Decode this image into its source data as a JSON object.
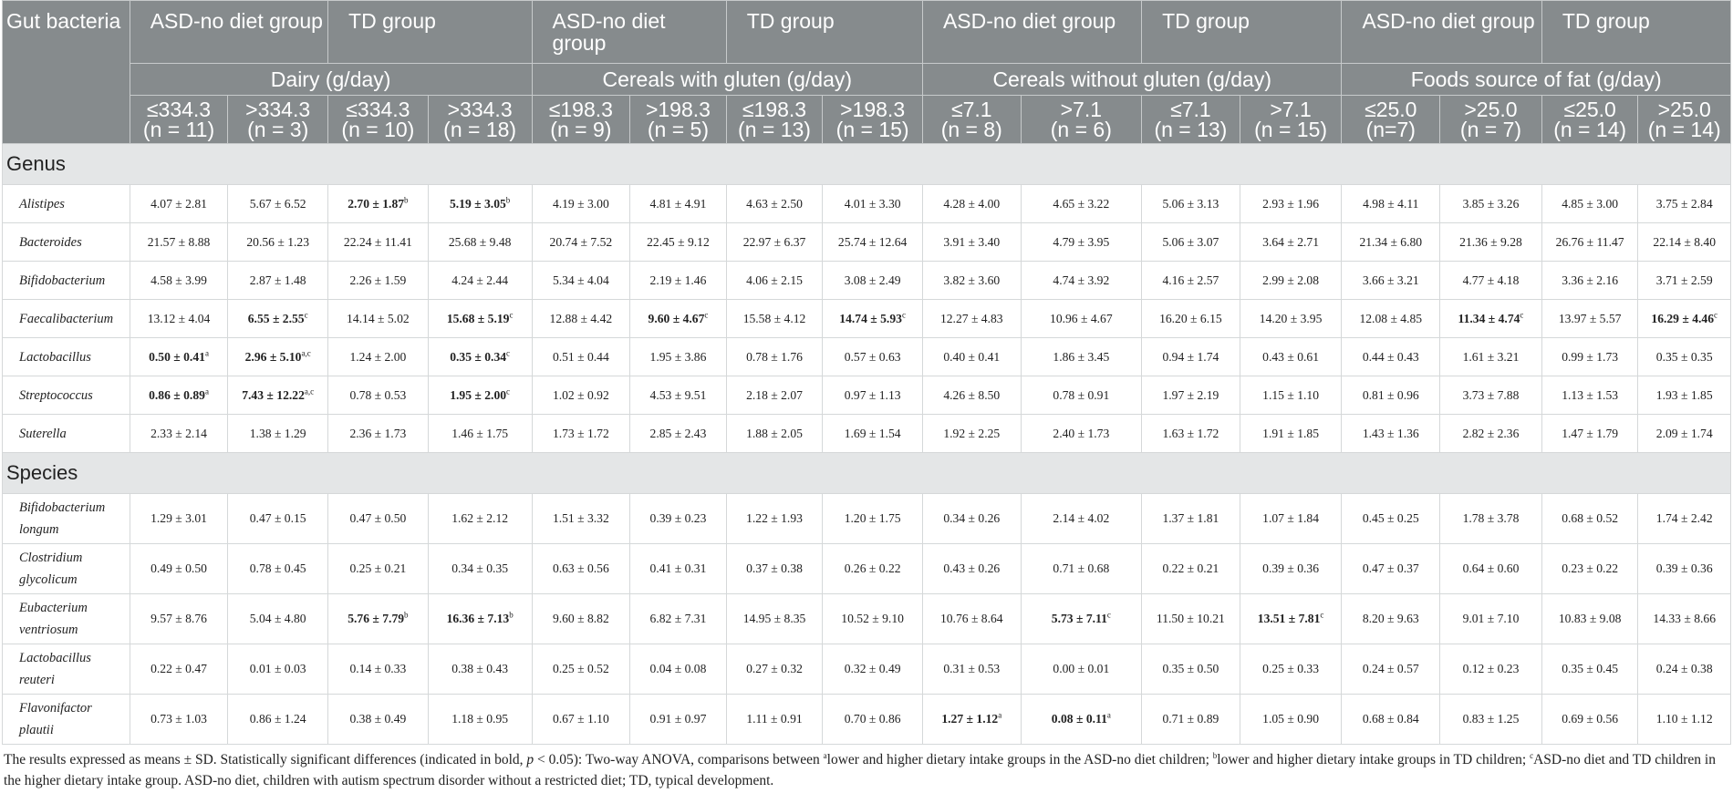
{
  "header": {
    "gut_bacteria": "Gut bacteria",
    "group_labels": [
      "ASD-no diet group",
      "TD group",
      "ASD-no diet group",
      "TD group",
      "ASD-no diet group",
      "TD group",
      "ASD-no diet group",
      "TD group"
    ],
    "food_groups": [
      "Dairy (g/day)",
      "Cereals with gluten (g/day)",
      "Cereals without gluten (g/day)",
      "Foods source of fat (g/day)"
    ],
    "sub_headers": [
      [
        "≤334.3",
        "(n = 11)"
      ],
      [
        ">334.3",
        "(n = 3)"
      ],
      [
        "≤334.3",
        "(n = 10)"
      ],
      [
        ">334.3",
        "(n = 18)"
      ],
      [
        "≤198.3",
        "(n = 9)"
      ],
      [
        ">198.3",
        "(n = 5)"
      ],
      [
        "≤198.3",
        "(n = 13)"
      ],
      [
        ">198.3",
        "(n = 15)"
      ],
      [
        "≤7.1",
        "(n = 8)"
      ],
      [
        ">7.1",
        "(n = 6)"
      ],
      [
        "≤7.1",
        "(n = 13)"
      ],
      [
        ">7.1",
        "(n = 15)"
      ],
      [
        "≤25.0",
        "(n=7)"
      ],
      [
        ">25.0",
        "(n = 7)"
      ],
      [
        "≤25.0",
        "(n = 14)"
      ],
      [
        ">25.0",
        "(n = 14)"
      ]
    ]
  },
  "sections": {
    "genus": {
      "label": "Genus",
      "rows": [
        {
          "name": "Alistipes",
          "values": [
            "4.07 ± 2.81",
            "5.67 ± 6.52",
            "2.70 ± 1.87",
            "5.19 ± 3.05",
            "4.19 ± 3.00",
            "4.81 ± 4.91",
            "4.63 ± 2.50",
            "4.01 ± 3.30",
            "4.28 ± 4.00",
            "4.65 ± 3.22",
            "5.06 ± 3.13",
            "2.93 ± 1.96",
            "4.98 ± 4.11",
            "3.85 ± 3.26",
            "4.85 ± 3.00",
            "3.75 ± 2.84"
          ],
          "sup": [
            "",
            "",
            "b",
            "b",
            "",
            "",
            "",
            "",
            "",
            "",
            "",
            "",
            "",
            "",
            "",
            ""
          ],
          "bold": [
            false,
            false,
            true,
            true,
            false,
            false,
            false,
            false,
            false,
            false,
            false,
            false,
            false,
            false,
            false,
            false
          ]
        },
        {
          "name": "Bacteroides",
          "values": [
            "21.57 ± 8.88",
            "20.56 ± 1.23",
            "22.24 ± 11.41",
            "25.68 ± 9.48",
            "20.74 ± 7.52",
            "22.45 ± 9.12",
            "22.97 ± 6.37",
            "25.74 ± 12.64",
            "3.91 ± 3.40",
            "4.79 ± 3.95",
            "5.06 ± 3.07",
            "3.64 ± 2.71",
            "21.34 ± 6.80",
            "21.36 ± 9.28",
            "26.76 ± 11.47",
            "22.14 ± 8.40"
          ],
          "sup": [
            "",
            "",
            "",
            "",
            "",
            "",
            "",
            "",
            "",
            "",
            "",
            "",
            "",
            "",
            "",
            ""
          ],
          "bold": [
            false,
            false,
            false,
            false,
            false,
            false,
            false,
            false,
            false,
            false,
            false,
            false,
            false,
            false,
            false,
            false
          ]
        },
        {
          "name": "Bifidobacterium",
          "values": [
            "4.58 ± 3.99",
            "2.87 ± 1.48",
            "2.26 ± 1.59",
            "4.24 ± 2.44",
            "5.34 ± 4.04",
            "2.19 ± 1.46",
            "4.06 ± 2.15",
            "3.08 ± 2.49",
            "3.82 ± 3.60",
            "4.74 ± 3.92",
            "4.16 ± 2.57",
            "2.99 ± 2.08",
            "3.66 ± 3.21",
            "4.77 ± 4.18",
            "3.36 ± 2.16",
            "3.71 ± 2.59"
          ],
          "sup": [
            "",
            "",
            "",
            "",
            "",
            "",
            "",
            "",
            "",
            "",
            "",
            "",
            "",
            "",
            "",
            ""
          ],
          "bold": [
            false,
            false,
            false,
            false,
            false,
            false,
            false,
            false,
            false,
            false,
            false,
            false,
            false,
            false,
            false,
            false
          ]
        },
        {
          "name": "Faecalibacterium",
          "values": [
            "13.12 ± 4.04",
            "6.55 ± 2.55",
            "14.14 ± 5.02",
            "15.68 ± 5.19",
            "12.88 ± 4.42",
            "9.60 ± 4.67",
            "15.58 ± 4.12",
            "14.74 ± 5.93",
            "12.27 ± 4.83",
            "10.96 ± 4.67",
            "16.20 ± 6.15",
            "14.20 ± 3.95",
            "12.08 ± 4.85",
            "11.34 ± 4.74",
            "13.97 ± 5.57",
            "16.29 ± 4.46"
          ],
          "sup": [
            "",
            "c",
            "",
            "c",
            "",
            "c",
            "",
            "c",
            "",
            "",
            "",
            "",
            "",
            "c",
            "",
            "c"
          ],
          "bold": [
            false,
            true,
            false,
            true,
            false,
            true,
            false,
            true,
            false,
            false,
            false,
            false,
            false,
            true,
            false,
            true
          ]
        },
        {
          "name": "Lactobacillus",
          "values": [
            "0.50 ± 0.41",
            "2.96 ± 5.10",
            "1.24 ± 2.00",
            "0.35 ± 0.34",
            "0.51 ± 0.44",
            "1.95 ± 3.86",
            "0.78 ± 1.76",
            "0.57 ± 0.63",
            "0.40 ± 0.41",
            "1.86 ± 3.45",
            "0.94 ± 1.74",
            "0.43 ± 0.61",
            "0.44 ± 0.43",
            "1.61 ± 3.21",
            "0.99 ± 1.73",
            "0.35 ± 0.35"
          ],
          "sup": [
            "a",
            "a,c",
            "",
            "c",
            "",
            "",
            "",
            "",
            "",
            "",
            "",
            "",
            "",
            "",
            "",
            ""
          ],
          "bold": [
            true,
            true,
            false,
            true,
            false,
            false,
            false,
            false,
            false,
            false,
            false,
            false,
            false,
            false,
            false,
            false
          ]
        },
        {
          "name": "Streptococcus",
          "values": [
            "0.86 ± 0.89",
            "7.43 ± 12.22",
            "0.78 ± 0.53",
            "1.95 ± 2.00",
            "1.02 ± 0.92",
            "4.53 ± 9.51",
            "2.18 ± 2.07",
            "0.97 ± 1.13",
            "4.26 ± 8.50",
            "0.78 ± 0.91",
            "1.97 ± 2.19",
            "1.15 ± 1.10",
            "0.81 ± 0.96",
            "3.73 ± 7.88",
            "1.13 ± 1.53",
            "1.93 ± 1.85"
          ],
          "sup": [
            "a",
            "a,c",
            "",
            "c",
            "",
            "",
            "",
            "",
            "",
            "",
            "",
            "",
            "",
            "",
            "",
            ""
          ],
          "bold": [
            true,
            true,
            false,
            true,
            false,
            false,
            false,
            false,
            false,
            false,
            false,
            false,
            false,
            false,
            false,
            false
          ]
        },
        {
          "name": "Suterella",
          "values": [
            "2.33 ± 2.14",
            "1.38 ± 1.29",
            "2.36 ± 1.73",
            "1.46 ± 1.75",
            "1.73 ± 1.72",
            "2.85 ± 2.43",
            "1.88 ± 2.05",
            "1.69 ± 1.54",
            "1.92 ± 2.25",
            "2.40 ± 1.73",
            "1.63 ± 1.72",
            "1.91 ± 1.85",
            "1.43 ± 1.36",
            "2.82 ± 2.36",
            "1.47 ± 1.79",
            "2.09 ± 1.74"
          ],
          "sup": [
            "",
            "",
            "",
            "",
            "",
            "",
            "",
            "",
            "",
            "",
            "",
            "",
            "",
            "",
            "",
            ""
          ],
          "bold": [
            false,
            false,
            false,
            false,
            false,
            false,
            false,
            false,
            false,
            false,
            false,
            false,
            false,
            false,
            false,
            false
          ]
        }
      ]
    },
    "species": {
      "label": "Species",
      "rows": [
        {
          "name": "Bifidobacterium longum",
          "values": [
            "1.29 ± 3.01",
            "0.47 ± 0.15",
            "0.47 ± 0.50",
            "1.62 ± 2.12",
            "1.51 ± 3.32",
            "0.39 ± 0.23",
            "1.22 ± 1.93",
            "1.20 ± 1.75",
            "0.34 ± 0.26",
            "2.14 ± 4.02",
            "1.37 ± 1.81",
            "1.07 ± 1.84",
            "0.45 ± 0.25",
            "1.78 ± 3.78",
            "0.68 ± 0.52",
            "1.74 ± 2.42"
          ],
          "sup": [
            "",
            "",
            "",
            "",
            "",
            "",
            "",
            "",
            "",
            "",
            "",
            "",
            "",
            "",
            "",
            ""
          ],
          "bold": [
            false,
            false,
            false,
            false,
            false,
            false,
            false,
            false,
            false,
            false,
            false,
            false,
            false,
            false,
            false,
            false
          ]
        },
        {
          "name": "Clostridium glycolicum",
          "values": [
            "0.49 ± 0.50",
            "0.78 ± 0.45",
            "0.25 ± 0.21",
            "0.34 ± 0.35",
            "0.63 ± 0.56",
            "0.41 ± 0.31",
            "0.37 ± 0.38",
            "0.26 ± 0.22",
            "0.43 ± 0.26",
            "0.71 ± 0.68",
            "0.22 ± 0.21",
            "0.39 ± 0.36",
            "0.47 ± 0.37",
            "0.64 ± 0.60",
            "0.23 ± 0.22",
            "0.39 ± 0.36"
          ],
          "sup": [
            "",
            "",
            "",
            "",
            "",
            "",
            "",
            "",
            "",
            "",
            "",
            "",
            "",
            "",
            "",
            ""
          ],
          "bold": [
            false,
            false,
            false,
            false,
            false,
            false,
            false,
            false,
            false,
            false,
            false,
            false,
            false,
            false,
            false,
            false
          ]
        },
        {
          "name": "Eubacterium ventriosum",
          "values": [
            "9.57 ± 8.76",
            "5.04 ± 4.80",
            "5.76 ± 7.79",
            "16.36 ± 7.13",
            "9.60 ± 8.82",
            "6.82 ± 7.31",
            "14.95 ± 8.35",
            "10.52 ± 9.10",
            "10.76 ± 8.64",
            "5.73 ± 7.11",
            "11.50 ± 10.21",
            "13.51 ± 7.81",
            "8.20 ± 9.63",
            "9.01 ± 7.10",
            "10.83 ± 9.08",
            "14.33 ± 8.66"
          ],
          "sup": [
            "",
            "",
            "b",
            "b",
            "",
            "",
            "",
            "",
            "",
            "c",
            "",
            "c",
            "",
            "",
            "",
            ""
          ],
          "bold": [
            false,
            false,
            true,
            true,
            false,
            false,
            false,
            false,
            false,
            true,
            false,
            true,
            false,
            false,
            false,
            false
          ]
        },
        {
          "name": "Lactobacillus reuteri",
          "values": [
            "0.22 ± 0.47",
            "0.01 ± 0.03",
            "0.14 ± 0.33",
            "0.38 ± 0.43",
            "0.25 ± 0.52",
            "0.04 ± 0.08",
            "0.27 ± 0.32",
            "0.32 ± 0.49",
            "0.31 ± 0.53",
            "0.00 ± 0.01",
            "0.35 ± 0.50",
            "0.25 ± 0.33",
            "0.24 ± 0.57",
            "0.12 ± 0.23",
            "0.35 ± 0.45",
            "0.24 ± 0.38"
          ],
          "sup": [
            "",
            "",
            "",
            "",
            "",
            "",
            "",
            "",
            "",
            "",
            "",
            "",
            "",
            "",
            "",
            ""
          ],
          "bold": [
            false,
            false,
            false,
            false,
            false,
            false,
            false,
            false,
            false,
            false,
            false,
            false,
            false,
            false,
            false,
            false
          ]
        },
        {
          "name": "Flavonifactor plautii",
          "values": [
            "0.73 ± 1.03",
            "0.86 ± 1.24",
            "0.38 ± 0.49",
            "1.18 ± 0.95",
            "0.67 ± 1.10",
            "0.91 ± 0.97",
            "1.11 ± 0.91",
            "0.70 ± 0.86",
            "1.27 ± 1.12",
            "0.08 ± 0.11",
            "0.71 ± 0.89",
            "1.05 ± 0.90",
            "0.68 ± 0.84",
            "0.83 ± 1.25",
            "0.69 ± 0.56",
            "1.10 ± 1.12"
          ],
          "sup": [
            "",
            "",
            "",
            "",
            "",
            "",
            "",
            "",
            "a",
            "a",
            "",
            "",
            "",
            "",
            "",
            ""
          ],
          "bold": [
            false,
            false,
            false,
            false,
            false,
            false,
            false,
            false,
            true,
            true,
            false,
            false,
            false,
            false,
            false,
            false
          ]
        }
      ]
    }
  },
  "footnote": {
    "line1": "The results expressed as means ± SD. Statistically significant differences (indicated in bold, ",
    "p": "p",
    "line1b": " < 0.05): Two-way ANOVA, comparisons between ",
    "a": "a",
    "text_a": "lower and higher dietary intake groups in the ASD-no diet children; ",
    "b": "b",
    "text_b": "lower and higher dietary intake groups in TD children; ",
    "c": "c",
    "text_c": "ASD-no diet and TD children in the higher dietary intake group. ASD-no diet, children with autism spectrum disorder without a restricted diet; TD, typical development."
  }
}
